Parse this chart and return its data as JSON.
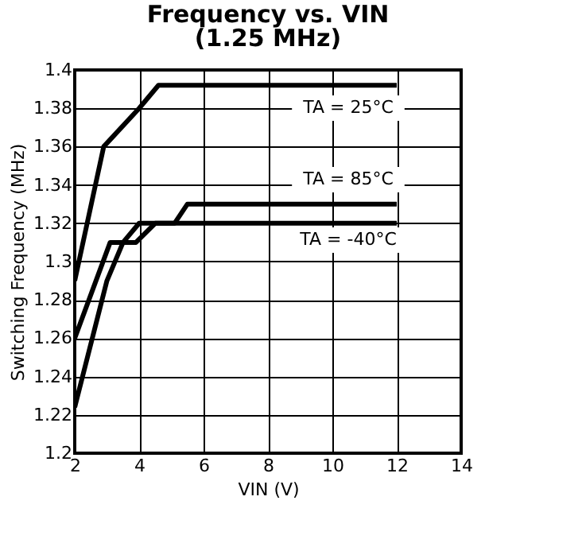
{
  "chart_data": {
    "type": "line",
    "title": "Frequency vs. VIN",
    "subtitle": "(1.25 MHz)",
    "xlabel": "VIN (V)",
    "ylabel": "Switching Frequency (MHz)",
    "xlim": [
      2,
      14
    ],
    "xticks": [
      2,
      4,
      6,
      8,
      10,
      12,
      14
    ],
    "ylim": [
      1.2,
      1.4
    ],
    "yticks": [
      1.2,
      1.22,
      1.24,
      1.26,
      1.28,
      1.3,
      1.32,
      1.34,
      1.36,
      1.38,
      1.4
    ],
    "grid": true,
    "marker": "none",
    "line_style": "solid",
    "series": [
      {
        "color": "#000000",
        "x": [
          2,
          2.9,
          4,
          4.6,
          12
        ],
        "values": [
          1.29,
          1.36,
          1.38,
          1.392,
          1.392
        ]
      },
      {
        "color": "#000000",
        "x": [
          2,
          3.1,
          3.9,
          4.5,
          5.1,
          5.5,
          12
        ],
        "values": [
          1.26,
          1.31,
          1.31,
          1.32,
          1.32,
          1.33,
          1.33
        ]
      },
      {
        "color": "#000000",
        "x": [
          2,
          3,
          3.5,
          4,
          12
        ],
        "values": [
          1.224,
          1.29,
          1.31,
          1.32,
          1.32
        ]
      }
    ],
    "annotations": [
      "TA = 25°C",
      "TA = 85°C",
      "TA = -40°C"
    ]
  }
}
